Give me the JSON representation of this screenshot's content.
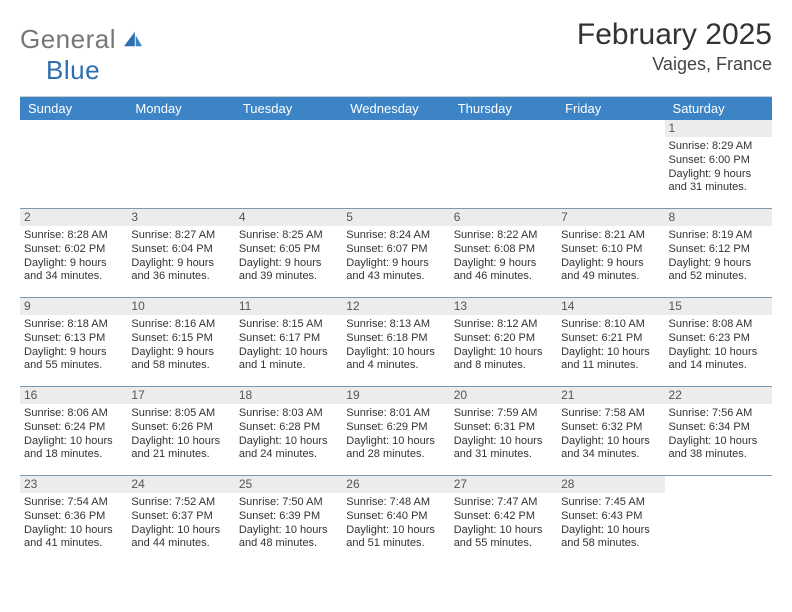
{
  "logo": {
    "word1": "General",
    "word2": "Blue"
  },
  "title": "February 2025",
  "location": "Vaiges, France",
  "header_bg": "#3d84c6",
  "weekdays": [
    "Sunday",
    "Monday",
    "Tuesday",
    "Wednesday",
    "Thursday",
    "Friday",
    "Saturday"
  ],
  "weeks": [
    [
      null,
      null,
      null,
      null,
      null,
      null,
      {
        "n": "1",
        "sunrise": "Sunrise: 8:29 AM",
        "sunset": "Sunset: 6:00 PM",
        "daylight": "Daylight: 9 hours and 31 minutes."
      }
    ],
    [
      {
        "n": "2",
        "sunrise": "Sunrise: 8:28 AM",
        "sunset": "Sunset: 6:02 PM",
        "daylight": "Daylight: 9 hours and 34 minutes."
      },
      {
        "n": "3",
        "sunrise": "Sunrise: 8:27 AM",
        "sunset": "Sunset: 6:04 PM",
        "daylight": "Daylight: 9 hours and 36 minutes."
      },
      {
        "n": "4",
        "sunrise": "Sunrise: 8:25 AM",
        "sunset": "Sunset: 6:05 PM",
        "daylight": "Daylight: 9 hours and 39 minutes."
      },
      {
        "n": "5",
        "sunrise": "Sunrise: 8:24 AM",
        "sunset": "Sunset: 6:07 PM",
        "daylight": "Daylight: 9 hours and 43 minutes."
      },
      {
        "n": "6",
        "sunrise": "Sunrise: 8:22 AM",
        "sunset": "Sunset: 6:08 PM",
        "daylight": "Daylight: 9 hours and 46 minutes."
      },
      {
        "n": "7",
        "sunrise": "Sunrise: 8:21 AM",
        "sunset": "Sunset: 6:10 PM",
        "daylight": "Daylight: 9 hours and 49 minutes."
      },
      {
        "n": "8",
        "sunrise": "Sunrise: 8:19 AM",
        "sunset": "Sunset: 6:12 PM",
        "daylight": "Daylight: 9 hours and 52 minutes."
      }
    ],
    [
      {
        "n": "9",
        "sunrise": "Sunrise: 8:18 AM",
        "sunset": "Sunset: 6:13 PM",
        "daylight": "Daylight: 9 hours and 55 minutes."
      },
      {
        "n": "10",
        "sunrise": "Sunrise: 8:16 AM",
        "sunset": "Sunset: 6:15 PM",
        "daylight": "Daylight: 9 hours and 58 minutes."
      },
      {
        "n": "11",
        "sunrise": "Sunrise: 8:15 AM",
        "sunset": "Sunset: 6:17 PM",
        "daylight": "Daylight: 10 hours and 1 minute."
      },
      {
        "n": "12",
        "sunrise": "Sunrise: 8:13 AM",
        "sunset": "Sunset: 6:18 PM",
        "daylight": "Daylight: 10 hours and 4 minutes."
      },
      {
        "n": "13",
        "sunrise": "Sunrise: 8:12 AM",
        "sunset": "Sunset: 6:20 PM",
        "daylight": "Daylight: 10 hours and 8 minutes."
      },
      {
        "n": "14",
        "sunrise": "Sunrise: 8:10 AM",
        "sunset": "Sunset: 6:21 PM",
        "daylight": "Daylight: 10 hours and 11 minutes."
      },
      {
        "n": "15",
        "sunrise": "Sunrise: 8:08 AM",
        "sunset": "Sunset: 6:23 PM",
        "daylight": "Daylight: 10 hours and 14 minutes."
      }
    ],
    [
      {
        "n": "16",
        "sunrise": "Sunrise: 8:06 AM",
        "sunset": "Sunset: 6:24 PM",
        "daylight": "Daylight: 10 hours and 18 minutes."
      },
      {
        "n": "17",
        "sunrise": "Sunrise: 8:05 AM",
        "sunset": "Sunset: 6:26 PM",
        "daylight": "Daylight: 10 hours and 21 minutes."
      },
      {
        "n": "18",
        "sunrise": "Sunrise: 8:03 AM",
        "sunset": "Sunset: 6:28 PM",
        "daylight": "Daylight: 10 hours and 24 minutes."
      },
      {
        "n": "19",
        "sunrise": "Sunrise: 8:01 AM",
        "sunset": "Sunset: 6:29 PM",
        "daylight": "Daylight: 10 hours and 28 minutes."
      },
      {
        "n": "20",
        "sunrise": "Sunrise: 7:59 AM",
        "sunset": "Sunset: 6:31 PM",
        "daylight": "Daylight: 10 hours and 31 minutes."
      },
      {
        "n": "21",
        "sunrise": "Sunrise: 7:58 AM",
        "sunset": "Sunset: 6:32 PM",
        "daylight": "Daylight: 10 hours and 34 minutes."
      },
      {
        "n": "22",
        "sunrise": "Sunrise: 7:56 AM",
        "sunset": "Sunset: 6:34 PM",
        "daylight": "Daylight: 10 hours and 38 minutes."
      }
    ],
    [
      {
        "n": "23",
        "sunrise": "Sunrise: 7:54 AM",
        "sunset": "Sunset: 6:36 PM",
        "daylight": "Daylight: 10 hours and 41 minutes."
      },
      {
        "n": "24",
        "sunrise": "Sunrise: 7:52 AM",
        "sunset": "Sunset: 6:37 PM",
        "daylight": "Daylight: 10 hours and 44 minutes."
      },
      {
        "n": "25",
        "sunrise": "Sunrise: 7:50 AM",
        "sunset": "Sunset: 6:39 PM",
        "daylight": "Daylight: 10 hours and 48 minutes."
      },
      {
        "n": "26",
        "sunrise": "Sunrise: 7:48 AM",
        "sunset": "Sunset: 6:40 PM",
        "daylight": "Daylight: 10 hours and 51 minutes."
      },
      {
        "n": "27",
        "sunrise": "Sunrise: 7:47 AM",
        "sunset": "Sunset: 6:42 PM",
        "daylight": "Daylight: 10 hours and 55 minutes."
      },
      {
        "n": "28",
        "sunrise": "Sunrise: 7:45 AM",
        "sunset": "Sunset: 6:43 PM",
        "daylight": "Daylight: 10 hours and 58 minutes."
      },
      null
    ]
  ]
}
